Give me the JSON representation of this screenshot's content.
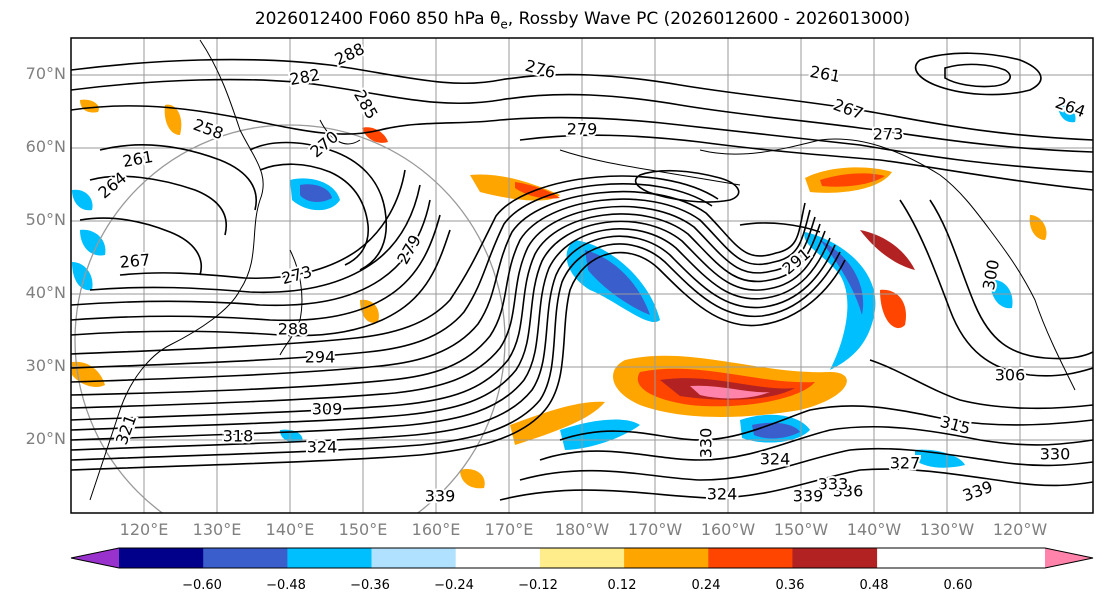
{
  "title": {
    "prefix": "2026012400 F060 850 hPa θ",
    "sub": "e",
    "suffix": ", Rossby Wave PC (2026012600 - 2026013000)"
  },
  "map": {
    "projection": "PlateCarree",
    "lon_range": [
      110,
      250
    ],
    "lat_range": [
      10,
      75
    ],
    "lat_labels": [
      "70°N",
      "60°N",
      "50°N",
      "40°N",
      "30°N",
      "20°N"
    ],
    "lon_labels": [
      "120°E",
      "130°E",
      "140°E",
      "150°E",
      "160°E",
      "170°E",
      "180°W",
      "170°W",
      "160°W",
      "150°W",
      "140°W",
      "130°W",
      "120°W"
    ],
    "contour_labels": [
      "288",
      "282",
      "276",
      "261",
      "267",
      "258",
      "264",
      "279",
      "273",
      "270",
      "285",
      "267",
      "261",
      "264",
      "273",
      "279",
      "291",
      "300",
      "288",
      "294",
      "309",
      "318",
      "324",
      "321",
      "306",
      "315",
      "327",
      "330",
      "339",
      "336",
      "333",
      "324",
      "330",
      "324",
      "339",
      "339"
    ],
    "colors": {
      "contour": "#000000",
      "grid": "#9a9a9a",
      "coast": "#000000"
    }
  },
  "colorbar": {
    "tick_labels": [
      "−0.60",
      "−0.48",
      "−0.36",
      "−0.24",
      "−0.12",
      "0.12",
      "0.24",
      "0.36",
      "0.48",
      "0.60"
    ],
    "colors": [
      "#9932CC",
      "#00008B",
      "#3A5FCD",
      "#00BFFF",
      "#B0E2FF",
      "#FFFFFF",
      "#FFEC8B",
      "#FFA500",
      "#FF4500",
      "#B22222",
      "#FF83AA"
    ]
  }
}
